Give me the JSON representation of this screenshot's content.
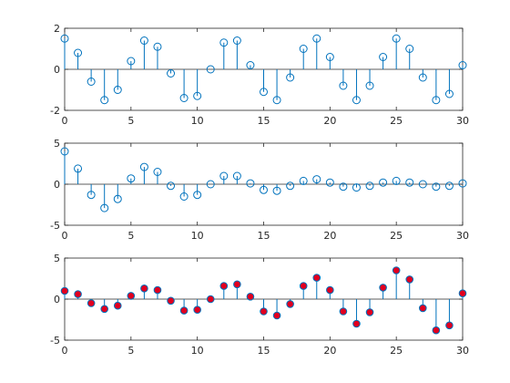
{
  "figure": {
    "background": "#ffffff",
    "axes_color": "#262626",
    "stem_color": "#0072bd",
    "filled_marker_color": "#e1001f"
  },
  "chart_data": [
    {
      "type": "stem",
      "marker": "open-circle",
      "title": "",
      "xlabel": "",
      "ylabel": "",
      "xlim": [
        0,
        30
      ],
      "ylim": [
        -2,
        2
      ],
      "xticks": [
        0,
        5,
        10,
        15,
        20,
        25,
        30
      ],
      "yticks": [
        -2,
        0,
        2
      ],
      "grid": false,
      "x": [
        0,
        1,
        2,
        3,
        4,
        5,
        6,
        7,
        8,
        9,
        10,
        11,
        12,
        13,
        14,
        15,
        16,
        17,
        18,
        19,
        20,
        21,
        22,
        23,
        24,
        25,
        26,
        27,
        28,
        29,
        30
      ],
      "values": [
        1.5,
        0.8,
        -0.6,
        -1.5,
        -1.0,
        0.4,
        1.4,
        1.1,
        -0.2,
        -1.4,
        -1.3,
        0.0,
        1.3,
        1.4,
        0.2,
        -1.1,
        -1.5,
        -0.4,
        1.0,
        1.5,
        0.6,
        -0.8,
        -1.5,
        -0.8,
        0.6,
        1.5,
        1.0,
        -0.4,
        -1.5,
        -1.2,
        0.2
      ]
    },
    {
      "type": "stem",
      "marker": "open-circle",
      "title": "",
      "xlabel": "",
      "ylabel": "",
      "xlim": [
        0,
        30
      ],
      "ylim": [
        -5,
        5
      ],
      "xticks": [
        0,
        5,
        10,
        15,
        20,
        25,
        30
      ],
      "yticks": [
        -5,
        0,
        5
      ],
      "grid": false,
      "x": [
        0,
        1,
        2,
        3,
        4,
        5,
        6,
        7,
        8,
        9,
        10,
        11,
        12,
        13,
        14,
        15,
        16,
        17,
        18,
        19,
        20,
        21,
        22,
        23,
        24,
        25,
        26,
        27,
        28,
        29,
        30
      ],
      "values": [
        4.0,
        1.9,
        -1.3,
        -2.9,
        -1.8,
        0.7,
        2.1,
        1.5,
        -0.2,
        -1.5,
        -1.3,
        0.0,
        1.0,
        1.0,
        0.1,
        -0.7,
        -0.8,
        -0.2,
        0.4,
        0.6,
        0.2,
        -0.3,
        -0.4,
        -0.2,
        0.2,
        0.4,
        0.2,
        0.0,
        -0.3,
        -0.2,
        0.1
      ]
    },
    {
      "type": "stem",
      "marker": "filled-circle",
      "title": "",
      "xlabel": "",
      "ylabel": "",
      "xlim": [
        0,
        30
      ],
      "ylim": [
        -5,
        5
      ],
      "xticks": [
        0,
        5,
        10,
        15,
        20,
        25,
        30
      ],
      "yticks": [
        -5,
        0,
        5
      ],
      "grid": false,
      "x": [
        0,
        1,
        2,
        3,
        4,
        5,
        6,
        7,
        8,
        9,
        10,
        11,
        12,
        13,
        14,
        15,
        16,
        17,
        18,
        19,
        20,
        21,
        22,
        23,
        24,
        25,
        26,
        27,
        28,
        29,
        30
      ],
      "values": [
        1.0,
        0.6,
        -0.5,
        -1.2,
        -0.8,
        0.4,
        1.3,
        1.1,
        -0.2,
        -1.4,
        -1.3,
        0.0,
        1.6,
        1.8,
        0.3,
        -1.5,
        -2.0,
        -0.6,
        1.6,
        2.6,
        1.1,
        -1.5,
        -3.0,
        -1.6,
        1.4,
        3.5,
        2.4,
        -1.1,
        -3.8,
        -3.2,
        0.7
      ]
    }
  ]
}
